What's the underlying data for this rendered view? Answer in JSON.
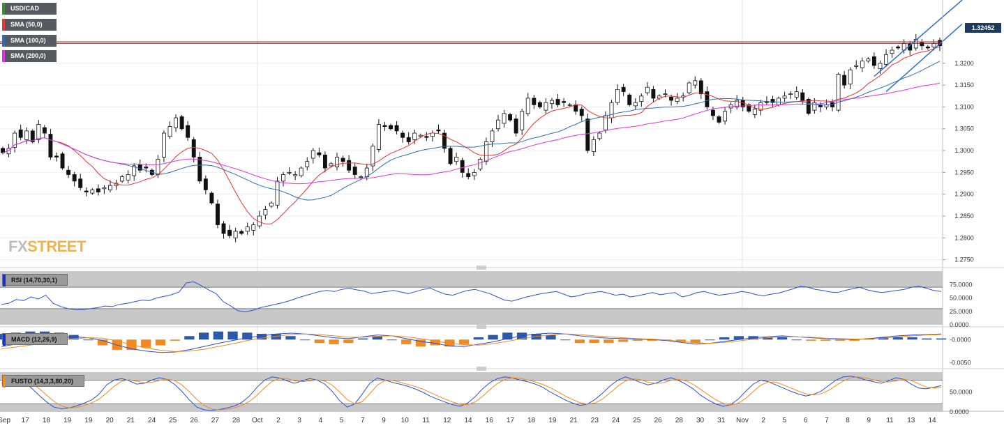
{
  "chart_data": [
    {
      "type": "candlestick",
      "title": "USD/CAD",
      "yticks": [
        "1.3200",
        "1.3150",
        "1.3100",
        "1.3050",
        "1.3000",
        "1.2950",
        "1.2900",
        "1.2850",
        "1.2800",
        "1.2750"
      ],
      "ylim": [
        1.2735,
        1.3345
      ],
      "last_price": "1.32452",
      "resistance_level": 1.3249,
      "candles_4h": [
        1.2995,
        1.3005,
        1.304,
        1.303,
        1.3045,
        1.302,
        1.306,
        1.304,
        1.2985,
        1.2985,
        1.296,
        1.2945,
        1.293,
        1.2915,
        1.2905,
        1.291,
        1.2905,
        1.2915,
        1.292,
        1.2925,
        1.294,
        1.2945,
        1.2965,
        1.2955,
        1.296,
        1.2945,
        1.298,
        1.304,
        1.3055,
        1.3075,
        1.305,
        1.303,
        1.2985,
        1.293,
        1.291,
        1.288,
        1.283,
        1.281,
        1.2805,
        1.2815,
        1.281,
        1.2825,
        1.283,
        1.285,
        1.2865,
        1.288,
        1.293,
        1.2945,
        1.295,
        1.2945,
        1.296,
        1.2975,
        1.3,
        1.299,
        1.296,
        1.297,
        1.2985,
        1.2975,
        1.2955,
        1.2945,
        1.294,
        1.296,
        1.301,
        1.306,
        1.3055,
        1.305,
        1.3045,
        1.303,
        1.302,
        1.304,
        1.3035,
        1.303,
        1.304,
        1.3045,
        1.3005,
        1.297,
        1.2985,
        1.295,
        1.294,
        1.295,
        1.298,
        1.302,
        1.3045,
        1.307,
        1.3085,
        1.307,
        1.304,
        1.309,
        1.312,
        1.3105,
        1.31,
        1.311,
        1.3115,
        1.3105,
        1.311,
        1.3105,
        1.309,
        1.308,
        1.3,
        1.3025,
        1.304,
        1.308,
        1.311,
        1.314,
        1.3135,
        1.3105,
        1.311,
        1.3125,
        1.3145,
        1.312,
        1.3125,
        1.313,
        1.3115,
        1.312,
        1.3125,
        1.3155,
        1.316,
        1.313,
        1.31,
        1.308,
        1.3065,
        1.309,
        1.3105,
        1.3115,
        1.31,
        1.309,
        1.3095,
        1.311,
        1.311,
        1.311,
        1.312,
        1.3125,
        1.313,
        1.3135,
        1.3115,
        1.3085,
        1.311,
        1.31,
        1.3105,
        1.31,
        1.3175,
        1.315,
        1.3185,
        1.3195,
        1.3205,
        1.321,
        1.3195,
        1.32,
        1.322,
        1.323,
        1.3235,
        1.3245,
        1.323,
        1.3255,
        1.324,
        1.3235,
        1.3245,
        1.324
      ]
    },
    {
      "type": "line",
      "title": "RSI (14,70,30,1)",
      "yticks": [
        "75.0000",
        "50.0000",
        "25.0000",
        "0.0000"
      ],
      "ylim": [
        0,
        100
      ],
      "bands": [
        30,
        70
      ],
      "values": [
        38,
        40,
        47,
        45,
        52,
        48,
        55,
        40,
        34,
        30,
        28,
        28,
        30,
        32,
        35,
        34,
        38,
        40,
        43,
        46,
        45,
        50,
        53,
        56,
        61,
        78,
        80,
        73,
        65,
        58,
        43,
        35,
        26,
        24,
        27,
        32,
        35,
        38,
        41,
        45,
        50,
        54,
        58,
        62,
        64,
        62,
        66,
        68,
        65,
        63,
        58,
        60,
        62,
        64,
        61,
        58,
        62,
        66,
        68,
        62,
        57,
        55,
        60,
        64,
        66,
        62,
        58,
        52,
        46,
        44,
        48,
        52,
        55,
        58,
        60,
        62,
        57,
        52,
        54,
        58,
        60,
        62,
        59,
        55,
        57,
        52,
        54,
        57,
        60,
        56,
        58,
        60,
        52,
        55,
        60,
        62,
        58,
        55,
        57,
        59,
        62,
        60,
        56,
        54,
        57,
        59,
        63,
        67,
        72,
        70,
        66,
        64,
        61,
        60,
        64,
        67,
        70,
        65,
        62,
        60,
        62,
        64,
        66,
        70,
        72,
        68,
        64,
        62
      ]
    },
    {
      "type": "bar",
      "title": "MACD (12,26,9)",
      "yticks": [
        "-0.0000",
        "-0.0050"
      ],
      "ylim": [
        -0.006,
        0.002
      ],
      "macd_line": [
        -0.0015,
        -0.001,
        -0.0005,
        0.0,
        0.0004,
        0.0006,
        0.0004,
        -0.0002,
        -0.0012,
        -0.002,
        -0.0025,
        -0.0028,
        -0.0027,
        -0.0022,
        -0.0015,
        -0.0008,
        -0.0002,
        0.0004,
        0.0008,
        0.0012,
        0.0014,
        0.0012,
        0.0008,
        0.0004,
        0.0002,
        0.0006,
        0.001,
        0.0008,
        0.0002,
        -0.0004,
        -0.0008,
        -0.0014,
        -0.0015,
        -0.001,
        -0.0005,
        0.0002,
        0.0008,
        0.0012,
        0.0014,
        0.0012,
        0.0008,
        0.0005,
        0.0003,
        0.0002,
        0.0001,
        0.0,
        -0.0002,
        -0.0006,
        -0.001,
        -0.0008,
        -0.0004,
        0.0,
        0.0004,
        0.0006,
        0.0008,
        0.0006,
        0.0004,
        0.0002,
        0.0001,
        0.0,
        0.0002,
        0.0005,
        0.0008,
        0.001,
        0.0011,
        0.0012
      ],
      "signal_line": [
        -0.002,
        -0.0016,
        -0.0012,
        -0.0007,
        -0.0002,
        0.0002,
        0.0004,
        0.0003,
        -0.0003,
        -0.0011,
        -0.0018,
        -0.0023,
        -0.0026,
        -0.0025,
        -0.0021,
        -0.0015,
        -0.0009,
        -0.0002,
        0.0003,
        0.0007,
        0.0011,
        0.0012,
        0.0011,
        0.0008,
        0.0005,
        0.0005,
        0.0007,
        0.0008,
        0.0006,
        0.0002,
        -0.0003,
        -0.0008,
        -0.0011,
        -0.0012,
        -0.0009,
        -0.0004,
        0.0002,
        0.0007,
        0.001,
        0.0012,
        0.0011,
        0.0008,
        0.0006,
        0.0004,
        0.0002,
        0.0001,
        -0.0001,
        -0.0004,
        -0.0007,
        -0.0008,
        -0.0006,
        -0.0003,
        0.0001,
        0.0004,
        0.0006,
        0.0006,
        0.0005,
        0.0003,
        0.0002,
        0.0001,
        0.0001,
        0.0003,
        0.0006,
        0.0008,
        0.001,
        0.0011
      ]
    },
    {
      "type": "line",
      "title": "FUSTO (14,3,3,80,20)",
      "yticks": [
        "50.0000",
        "0.0000"
      ],
      "ylim": [
        0,
        100
      ],
      "bands": [
        20,
        80
      ],
      "k_values": [
        72,
        80,
        85,
        75,
        60,
        42,
        25,
        12,
        8,
        10,
        15,
        22,
        30,
        45,
        68,
        80,
        84,
        78,
        70,
        72,
        80,
        86,
        82,
        70,
        52,
        30,
        12,
        5,
        4,
        6,
        10,
        15,
        24,
        40,
        62,
        80,
        88,
        85,
        78,
        72,
        78,
        84,
        80,
        70,
        52,
        28,
        12,
        20,
        45,
        72,
        85,
        80,
        74,
        70,
        65,
        58,
        50,
        40,
        32,
        25,
        18,
        14,
        22,
        38,
        58,
        74,
        84,
        88,
        85,
        80,
        76,
        70,
        62,
        50,
        40,
        30,
        22,
        16,
        20,
        32,
        48,
        66,
        80,
        88,
        82,
        74,
        68,
        72,
        80,
        86,
        80,
        70,
        58,
        42,
        30,
        20,
        14,
        18,
        32,
        52,
        70,
        80,
        76,
        68,
        60,
        52,
        45,
        40,
        44,
        52,
        66,
        80,
        88,
        90,
        86,
        80,
        76,
        72,
        78,
        86,
        82,
        70,
        60,
        58,
        62,
        66
      ]
    }
  ],
  "legend": {
    "pair": "USD/CAD",
    "sma50": "SMA (50,0)",
    "sma100": "SMA (100,0)",
    "sma200": "SMA (200,0)",
    "colors": {
      "sma50": "#e8332e",
      "sma100": "#2d6db4",
      "sma200": "#e033e0",
      "channel": "#2f6fc8",
      "macd_pos": "#2d5aa8",
      "macd_neg": "#f18a1f"
    }
  },
  "x_labels": [
    "Sep",
    "17",
    "18",
    "19",
    "19",
    "20",
    "21",
    "24",
    "25",
    "26",
    "27",
    "28",
    "Oct",
    "2",
    "3",
    "4",
    "5",
    "7",
    "9",
    "10",
    "11",
    "12",
    "14",
    "16",
    "17",
    "18",
    "19",
    "21",
    "23",
    "24",
    "25",
    "26",
    "28",
    "30",
    "31",
    "Nov",
    "2",
    "5",
    "6",
    "7",
    "8",
    "9",
    "11",
    "13",
    "14"
  ],
  "watermark": {
    "part1": "FX",
    "part2": "STREET"
  }
}
